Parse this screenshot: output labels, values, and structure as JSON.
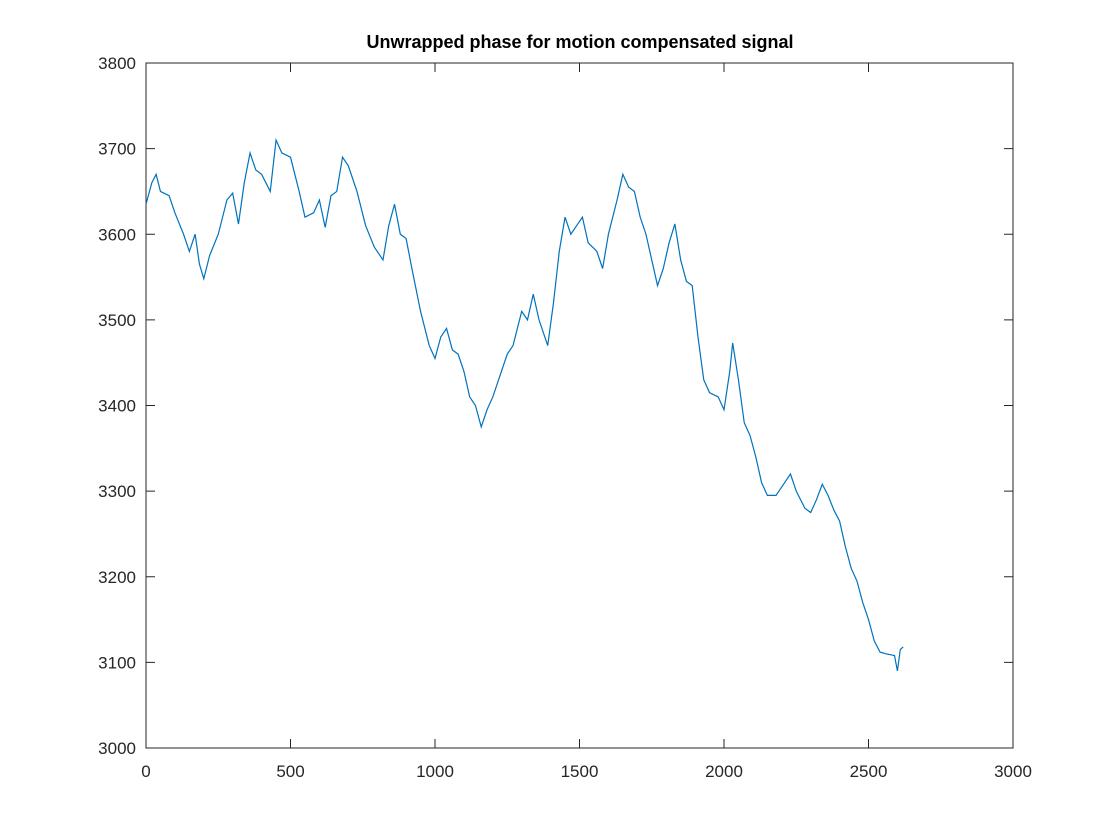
{
  "chart_data": {
    "type": "line",
    "title": "Unwrapped phase for motion compensated signal",
    "x": [
      0,
      20,
      35,
      50,
      80,
      100,
      130,
      150,
      170,
      185,
      200,
      220,
      250,
      280,
      300,
      320,
      340,
      360,
      380,
      400,
      430,
      450,
      470,
      500,
      530,
      550,
      580,
      600,
      620,
      640,
      660,
      680,
      700,
      730,
      760,
      790,
      820,
      840,
      860,
      880,
      900,
      920,
      950,
      980,
      1000,
      1020,
      1040,
      1060,
      1080,
      1100,
      1120,
      1140,
      1160,
      1180,
      1200,
      1220,
      1250,
      1270,
      1300,
      1320,
      1340,
      1360,
      1390,
      1410,
      1430,
      1450,
      1470,
      1490,
      1510,
      1530,
      1560,
      1580,
      1600,
      1630,
      1650,
      1670,
      1690,
      1710,
      1730,
      1750,
      1770,
      1790,
      1810,
      1830,
      1850,
      1870,
      1890,
      1910,
      1930,
      1950,
      1980,
      2000,
      2020,
      2030,
      2050,
      2070,
      2090,
      2110,
      2130,
      2150,
      2180,
      2210,
      2230,
      2250,
      2280,
      2300,
      2320,
      2340,
      2360,
      2380,
      2400,
      2420,
      2440,
      2460,
      2480,
      2500,
      2520,
      2540,
      2560,
      2590,
      2600,
      2610,
      2620
    ],
    "series": [
      {
        "color": "#0072bd",
        "values": [
          3635,
          3660,
          3670,
          3650,
          3645,
          3625,
          3600,
          3580,
          3600,
          3565,
          3548,
          3575,
          3600,
          3640,
          3648,
          3612,
          3660,
          3695,
          3675,
          3670,
          3650,
          3710,
          3695,
          3690,
          3650,
          3620,
          3625,
          3640,
          3608,
          3645,
          3650,
          3690,
          3680,
          3650,
          3610,
          3585,
          3570,
          3610,
          3635,
          3600,
          3595,
          3560,
          3510,
          3470,
          3455,
          3480,
          3490,
          3465,
          3460,
          3440,
          3410,
          3400,
          3375,
          3395,
          3410,
          3430,
          3460,
          3470,
          3510,
          3500,
          3530,
          3500,
          3470,
          3520,
          3580,
          3620,
          3600,
          3610,
          3620,
          3590,
          3580,
          3560,
          3600,
          3640,
          3670,
          3655,
          3650,
          3620,
          3600,
          3570,
          3540,
          3560,
          3590,
          3612,
          3570,
          3545,
          3540,
          3480,
          3430,
          3415,
          3410,
          3395,
          3440,
          3473,
          3430,
          3380,
          3365,
          3340,
          3310,
          3295,
          3295,
          3310,
          3320,
          3300,
          3280,
          3275,
          3290,
          3308,
          3295,
          3278,
          3265,
          3235,
          3210,
          3195,
          3170,
          3150,
          3125,
          3112,
          3110,
          3108,
          3090,
          3115,
          3118
        ]
      }
    ],
    "xlim": [
      0,
      3000
    ],
    "xticks": [
      0,
      500,
      1000,
      1500,
      2000,
      2500,
      3000
    ],
    "ylim": [
      3000,
      3800
    ],
    "yticks": [
      3000,
      3100,
      3200,
      3300,
      3400,
      3500,
      3600,
      3700,
      3800
    ],
    "grid": false
  }
}
